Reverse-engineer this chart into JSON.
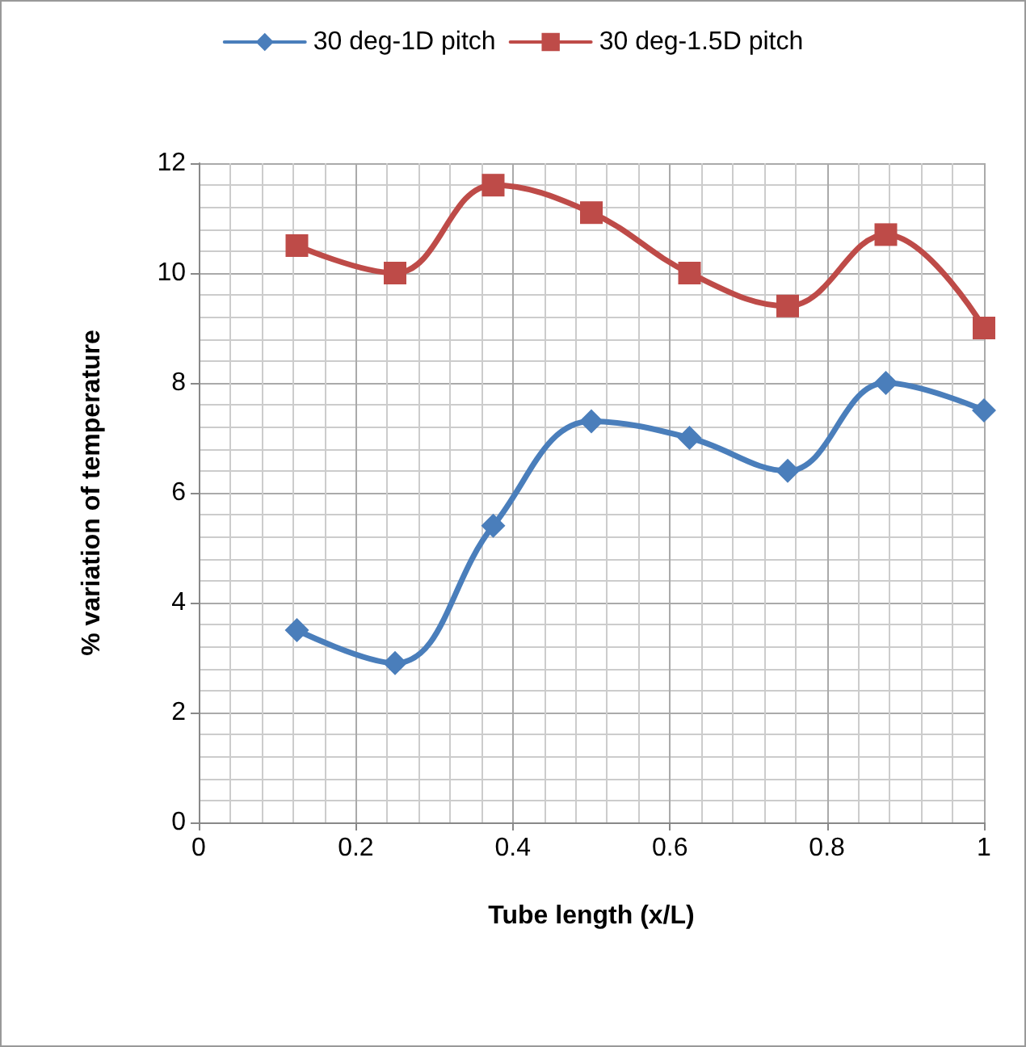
{
  "chart_data": {
    "type": "line",
    "xlabel": "Tube length (x/L)",
    "ylabel": "% variation of temperature",
    "x": [
      0.125,
      0.25,
      0.375,
      0.5,
      0.625,
      0.75,
      0.875,
      1
    ],
    "series": [
      {
        "name": "30 deg-1D pitch",
        "color": "#4a7ebb",
        "marker": "diamond",
        "values": [
          3.5,
          2.9,
          5.4,
          7.3,
          7.0,
          6.4,
          8.0,
          7.5
        ]
      },
      {
        "name": "30 deg-1.5D pitch",
        "color": "#be4b48",
        "marker": "square",
        "values": [
          10.5,
          10.0,
          11.6,
          11.1,
          10.0,
          9.4,
          10.7,
          9.0
        ]
      }
    ],
    "xlim": [
      0,
      1
    ],
    "xticks": [
      0,
      0.2,
      0.4,
      0.6,
      0.8,
      1
    ],
    "ylim": [
      0,
      12
    ],
    "yticks": [
      0,
      2,
      4,
      6,
      8,
      10,
      12
    ],
    "grid": true,
    "legend": "top",
    "line_style": "solid"
  }
}
